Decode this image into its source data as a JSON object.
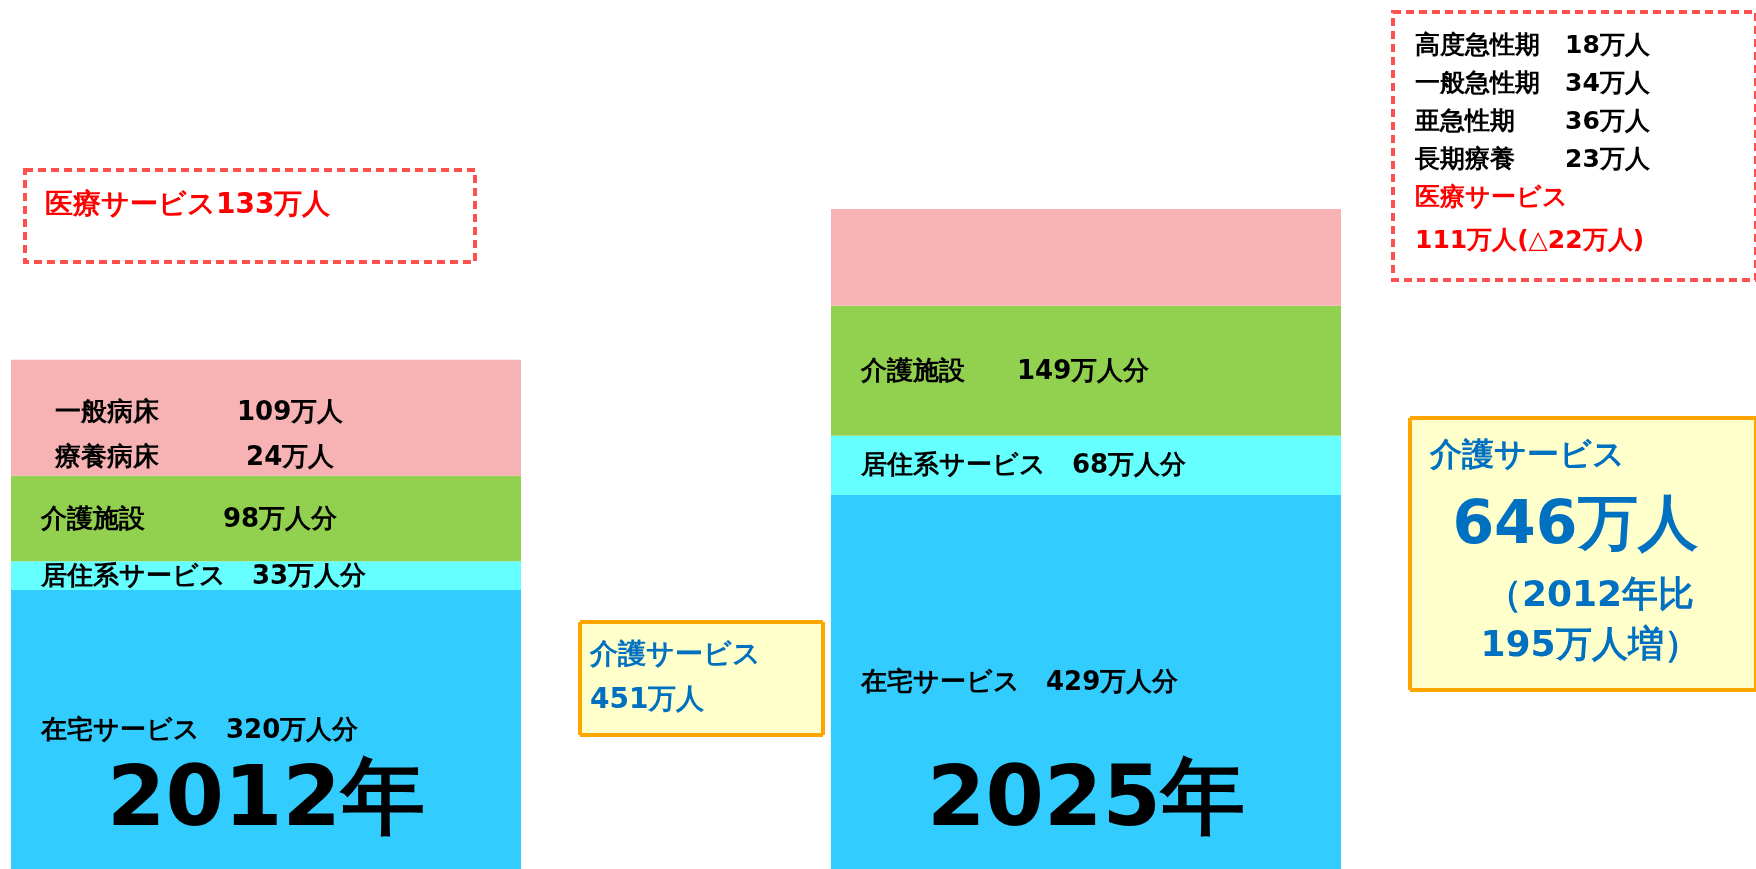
{
  "chart_data": {
    "type": "bar",
    "stacked": true,
    "categories": [
      "2012年",
      "2025年"
    ],
    "series": [
      {
        "color": "#33ccff",
        "values": [
          320,
          429
        ],
        "value_labels": [
          "在宅サービス　320万人分",
          "在宅サービス　429万人分"
        ]
      },
      {
        "color": "#66ffff",
        "values": [
          33,
          68
        ],
        "value_labels": [
          "居住系サービス　33万人分",
          "居住系サービス　68万人分"
        ]
      },
      {
        "color": "#92d050",
        "values": [
          98,
          149
        ],
        "value_labels": [
          "介護施設　　　98万人分",
          "介護施設　　149万人分"
        ]
      },
      {
        "color": "#f7b3b3",
        "values": [
          133,
          111
        ],
        "value_labels": [
          null,
          null
        ]
      }
    ],
    "annotations": [
      "一般病床　　　109万人",
      "療養病床　　　 24万人",
      "医療サービス133万人",
      "高度急性期　18万人",
      "一般急性期　34万人",
      "亜急性期　　36万人",
      "長期療養　　23万人",
      "医療サービス",
      "111万人(△22万人)",
      "介護サービス",
      "451万人",
      "介護サービス",
      "646万人",
      "（2012年比",
      "195万人増）"
    ]
  }
}
